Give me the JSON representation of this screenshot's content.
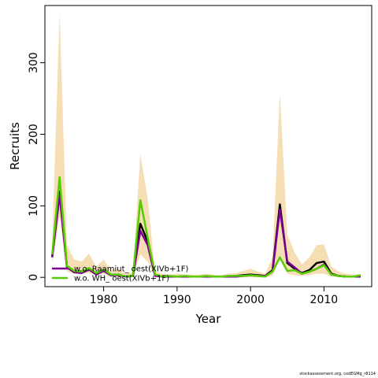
{
  "chart_data": {
    "type": "line",
    "xlabel": "Year",
    "ylabel": "Recruits",
    "xlim": [
      1972,
      2016.5
    ],
    "ylim": [
      -13,
      380
    ],
    "xticks": [
      1980,
      1990,
      2000,
      2010
    ],
    "yticks": [
      0,
      100,
      200,
      300
    ],
    "x": [
      1973,
      1974,
      1975,
      1976,
      1977,
      1978,
      1979,
      1980,
      1981,
      1982,
      1983,
      1984,
      1985,
      1986,
      1987,
      1988,
      1989,
      1990,
      1991,
      1992,
      1993,
      1994,
      1995,
      1996,
      1997,
      1998,
      1999,
      2000,
      2001,
      2002,
      2003,
      2004,
      2005,
      2006,
      2007,
      2008,
      2009,
      2010,
      2011,
      2012,
      2013,
      2014,
      2015
    ],
    "band": {
      "color": "#f5deb3",
      "upper": [
        50,
        370,
        45,
        25,
        22,
        33,
        15,
        25,
        10,
        12,
        5,
        8,
        172,
        110,
        8,
        5,
        4,
        5,
        4,
        4,
        4,
        5,
        4,
        3,
        5,
        6,
        9,
        12,
        8,
        5,
        28,
        258,
        60,
        35,
        18,
        28,
        45,
        46,
        15,
        8,
        5,
        4,
        4
      ],
      "lower": [
        20,
        85,
        8,
        5,
        5,
        6,
        3,
        5,
        1,
        1,
        0,
        0,
        32,
        22,
        1,
        0,
        0,
        0,
        0,
        0,
        0,
        0,
        0,
        0,
        0,
        0,
        0,
        0,
        0,
        0,
        2,
        28,
        5,
        3,
        2,
        3,
        5,
        5,
        1,
        1,
        0,
        0,
        0
      ]
    },
    "series": [
      {
        "color": "#000000",
        "values": [
          30,
          120,
          15,
          8,
          7,
          12,
          5,
          10,
          3,
          4,
          1,
          2,
          75,
          50,
          3,
          1,
          1,
          1,
          1,
          1,
          1,
          1,
          1,
          1,
          1,
          2,
          3,
          4,
          3,
          2,
          10,
          102,
          20,
          12,
          6,
          10,
          20,
          22,
          5,
          2,
          1,
          1,
          2
        ]
      },
      {
        "name": "w.o. Raamiut_ oest(XIVb+1F)",
        "color": "#7b0090",
        "values": [
          28,
          115,
          14,
          7,
          6,
          11,
          4,
          9,
          3,
          3,
          1,
          2,
          65,
          45,
          2,
          1,
          1,
          1,
          1,
          1,
          1,
          1,
          1,
          1,
          1,
          1,
          2,
          3,
          2,
          2,
          8,
          95,
          22,
          14,
          5,
          8,
          12,
          18,
          4,
          2,
          1,
          1,
          1
        ]
      },
      {
        "name": "w.o. WH_ oest(XIVb+1F)",
        "color": "#55cc00",
        "values": [
          32,
          140,
          16,
          9,
          8,
          13,
          6,
          11,
          4,
          4,
          1,
          2,
          108,
          55,
          4,
          1,
          2,
          1,
          2,
          1,
          1,
          2,
          1,
          1,
          2,
          2,
          2,
          3,
          2,
          1,
          8,
          28,
          9,
          10,
          5,
          8,
          12,
          17,
          4,
          2,
          1,
          1,
          3
        ]
      }
    ],
    "legend": [
      {
        "label": "w.o. Raamiut_ oest(XIVb+1F)",
        "color": "#7b0090"
      },
      {
        "label": "w.o. WH_ oest(XIVb+1F)",
        "color": "#55cc00"
      }
    ],
    "legend_position": "bottom-left"
  },
  "footer": "stockassessment.org, codEGMg_r8114"
}
